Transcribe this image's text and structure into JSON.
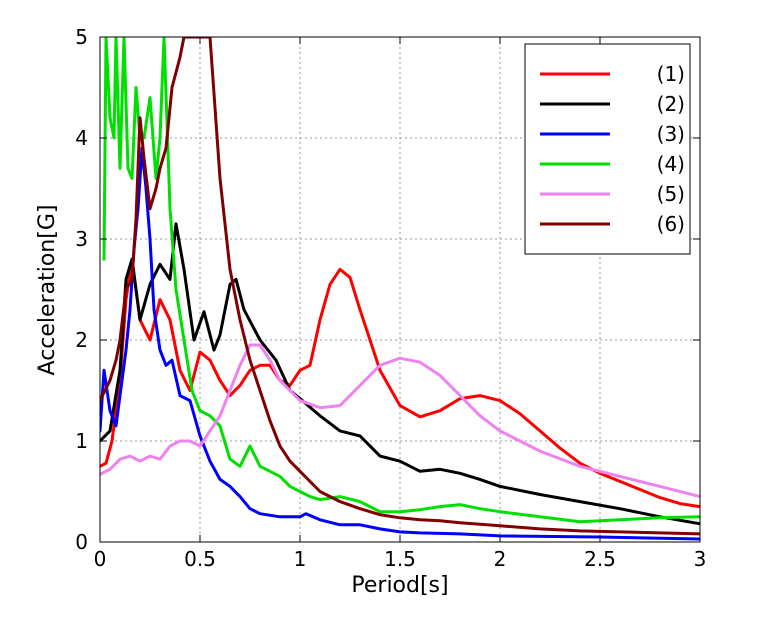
{
  "chart_data": {
    "type": "line",
    "title": "",
    "xlabel": "Period[s]",
    "ylabel": "Acceleration[G]",
    "xlim": [
      0,
      3
    ],
    "ylim": [
      0,
      5
    ],
    "xticks": [
      0,
      0.5,
      1,
      1.5,
      2,
      2.5,
      3
    ],
    "xtick_labels": [
      "0",
      "0.5",
      "1",
      "1.5",
      "2",
      "2.5",
      "3"
    ],
    "yticks": [
      0,
      1,
      2,
      3,
      4,
      5
    ],
    "ytick_labels": [
      "0",
      "1",
      "2",
      "3",
      "4",
      "5"
    ],
    "grid": true,
    "legend_position": "top-right",
    "series": [
      {
        "name": "(1)",
        "color": "#ff0000",
        "points": [
          [
            0,
            0.75
          ],
          [
            0.03,
            0.78
          ],
          [
            0.06,
            1.0
          ],
          [
            0.1,
            1.6
          ],
          [
            0.13,
            2.4
          ],
          [
            0.16,
            2.8
          ],
          [
            0.2,
            2.2
          ],
          [
            0.25,
            2.0
          ],
          [
            0.3,
            2.4
          ],
          [
            0.35,
            2.2
          ],
          [
            0.4,
            1.7
          ],
          [
            0.45,
            1.5
          ],
          [
            0.5,
            1.88
          ],
          [
            0.55,
            1.8
          ],
          [
            0.6,
            1.6
          ],
          [
            0.65,
            1.45
          ],
          [
            0.7,
            1.55
          ],
          [
            0.75,
            1.7
          ],
          [
            0.8,
            1.75
          ],
          [
            0.85,
            1.75
          ],
          [
            0.9,
            1.6
          ],
          [
            0.95,
            1.55
          ],
          [
            1.0,
            1.7
          ],
          [
            1.05,
            1.75
          ],
          [
            1.1,
            2.2
          ],
          [
            1.15,
            2.55
          ],
          [
            1.2,
            2.7
          ],
          [
            1.25,
            2.62
          ],
          [
            1.3,
            2.3
          ],
          [
            1.4,
            1.7
          ],
          [
            1.5,
            1.35
          ],
          [
            1.6,
            1.24
          ],
          [
            1.7,
            1.3
          ],
          [
            1.8,
            1.42
          ],
          [
            1.9,
            1.45
          ],
          [
            2.0,
            1.4
          ],
          [
            2.1,
            1.27
          ],
          [
            2.2,
            1.1
          ],
          [
            2.3,
            0.93
          ],
          [
            2.4,
            0.78
          ],
          [
            2.5,
            0.68
          ],
          [
            2.6,
            0.6
          ],
          [
            2.7,
            0.52
          ],
          [
            2.8,
            0.44
          ],
          [
            2.9,
            0.38
          ],
          [
            3.0,
            0.35
          ]
        ]
      },
      {
        "name": "(2)",
        "color": "#000000",
        "points": [
          [
            0,
            1.0
          ],
          [
            0.05,
            1.1
          ],
          [
            0.1,
            1.7
          ],
          [
            0.13,
            2.6
          ],
          [
            0.16,
            2.8
          ],
          [
            0.2,
            2.2
          ],
          [
            0.25,
            2.55
          ],
          [
            0.3,
            2.75
          ],
          [
            0.35,
            2.6
          ],
          [
            0.38,
            3.15
          ],
          [
            0.42,
            2.7
          ],
          [
            0.47,
            2.0
          ],
          [
            0.52,
            2.28
          ],
          [
            0.57,
            1.9
          ],
          [
            0.6,
            2.05
          ],
          [
            0.65,
            2.55
          ],
          [
            0.68,
            2.6
          ],
          [
            0.72,
            2.3
          ],
          [
            0.8,
            2.0
          ],
          [
            0.88,
            1.8
          ],
          [
            0.95,
            1.5
          ],
          [
            1.0,
            1.42
          ],
          [
            1.1,
            1.25
          ],
          [
            1.2,
            1.1
          ],
          [
            1.3,
            1.05
          ],
          [
            1.4,
            0.85
          ],
          [
            1.5,
            0.8
          ],
          [
            1.6,
            0.7
          ],
          [
            1.7,
            0.72
          ],
          [
            1.8,
            0.68
          ],
          [
            1.9,
            0.62
          ],
          [
            2.0,
            0.55
          ],
          [
            2.2,
            0.47
          ],
          [
            2.4,
            0.4
          ],
          [
            2.6,
            0.33
          ],
          [
            2.8,
            0.25
          ],
          [
            3.0,
            0.18
          ]
        ]
      },
      {
        "name": "(3)",
        "color": "#0000ff",
        "points": [
          [
            0,
            1.1
          ],
          [
            0.02,
            1.7
          ],
          [
            0.05,
            1.3
          ],
          [
            0.08,
            1.15
          ],
          [
            0.11,
            1.6
          ],
          [
            0.13,
            1.9
          ],
          [
            0.15,
            2.3
          ],
          [
            0.17,
            2.9
          ],
          [
            0.19,
            3.3
          ],
          [
            0.21,
            3.9
          ],
          [
            0.23,
            3.5
          ],
          [
            0.25,
            3.0
          ],
          [
            0.27,
            2.3
          ],
          [
            0.3,
            1.9
          ],
          [
            0.33,
            1.75
          ],
          [
            0.36,
            1.8
          ],
          [
            0.4,
            1.45
          ],
          [
            0.45,
            1.4
          ],
          [
            0.5,
            1.05
          ],
          [
            0.55,
            0.8
          ],
          [
            0.6,
            0.62
          ],
          [
            0.65,
            0.55
          ],
          [
            0.7,
            0.45
          ],
          [
            0.75,
            0.33
          ],
          [
            0.8,
            0.28
          ],
          [
            0.9,
            0.25
          ],
          [
            1.0,
            0.25
          ],
          [
            1.03,
            0.28
          ],
          [
            1.1,
            0.22
          ],
          [
            1.2,
            0.17
          ],
          [
            1.3,
            0.17
          ],
          [
            1.4,
            0.13
          ],
          [
            1.5,
            0.1
          ],
          [
            1.6,
            0.09
          ],
          [
            1.8,
            0.08
          ],
          [
            2.0,
            0.06
          ],
          [
            2.5,
            0.05
          ],
          [
            3.0,
            0.03
          ]
        ]
      },
      {
        "name": "(4)",
        "color": "#00e000",
        "points": [
          [
            0.02,
            2.8
          ],
          [
            0.03,
            5.0
          ],
          [
            0.05,
            4.2
          ],
          [
            0.07,
            4.0
          ],
          [
            0.08,
            5.0
          ],
          [
            0.1,
            3.7
          ],
          [
            0.12,
            5.0
          ],
          [
            0.14,
            3.7
          ],
          [
            0.16,
            3.6
          ],
          [
            0.18,
            4.5
          ],
          [
            0.2,
            4.0
          ],
          [
            0.22,
            4.0
          ],
          [
            0.25,
            4.4
          ],
          [
            0.28,
            3.6
          ],
          [
            0.3,
            4.0
          ],
          [
            0.32,
            5.0
          ],
          [
            0.35,
            3.3
          ],
          [
            0.38,
            2.5
          ],
          [
            0.42,
            2.0
          ],
          [
            0.46,
            1.5
          ],
          [
            0.5,
            1.3
          ],
          [
            0.55,
            1.25
          ],
          [
            0.6,
            1.15
          ],
          [
            0.65,
            0.82
          ],
          [
            0.7,
            0.75
          ],
          [
            0.75,
            0.95
          ],
          [
            0.8,
            0.75
          ],
          [
            0.85,
            0.7
          ],
          [
            0.9,
            0.65
          ],
          [
            0.95,
            0.55
          ],
          [
            1.0,
            0.5
          ],
          [
            1.05,
            0.45
          ],
          [
            1.1,
            0.42
          ],
          [
            1.2,
            0.45
          ],
          [
            1.3,
            0.4
          ],
          [
            1.4,
            0.3
          ],
          [
            1.5,
            0.3
          ],
          [
            1.6,
            0.32
          ],
          [
            1.7,
            0.35
          ],
          [
            1.8,
            0.37
          ],
          [
            1.9,
            0.33
          ],
          [
            2.0,
            0.3
          ],
          [
            2.2,
            0.25
          ],
          [
            2.4,
            0.2
          ],
          [
            2.6,
            0.22
          ],
          [
            2.8,
            0.24
          ],
          [
            3.0,
            0.25
          ]
        ]
      },
      {
        "name": "(5)",
        "color": "#ee82ee",
        "points": [
          [
            0,
            0.67
          ],
          [
            0.05,
            0.72
          ],
          [
            0.1,
            0.82
          ],
          [
            0.15,
            0.85
          ],
          [
            0.2,
            0.8
          ],
          [
            0.25,
            0.85
          ],
          [
            0.3,
            0.82
          ],
          [
            0.35,
            0.95
          ],
          [
            0.4,
            1.0
          ],
          [
            0.45,
            1.0
          ],
          [
            0.5,
            0.95
          ],
          [
            0.55,
            1.1
          ],
          [
            0.6,
            1.25
          ],
          [
            0.65,
            1.5
          ],
          [
            0.7,
            1.75
          ],
          [
            0.75,
            1.95
          ],
          [
            0.8,
            1.95
          ],
          [
            0.85,
            1.8
          ],
          [
            0.9,
            1.6
          ],
          [
            1.0,
            1.4
          ],
          [
            1.1,
            1.33
          ],
          [
            1.2,
            1.35
          ],
          [
            1.3,
            1.55
          ],
          [
            1.4,
            1.75
          ],
          [
            1.5,
            1.82
          ],
          [
            1.6,
            1.78
          ],
          [
            1.7,
            1.65
          ],
          [
            1.8,
            1.45
          ],
          [
            1.9,
            1.25
          ],
          [
            2.0,
            1.1
          ],
          [
            2.2,
            0.9
          ],
          [
            2.4,
            0.75
          ],
          [
            2.6,
            0.65
          ],
          [
            2.8,
            0.55
          ],
          [
            3.0,
            0.45
          ]
        ]
      },
      {
        "name": "(6)",
        "color": "#800000",
        "points": [
          [
            0,
            1.4
          ],
          [
            0.05,
            1.6
          ],
          [
            0.08,
            1.8
          ],
          [
            0.1,
            2.0
          ],
          [
            0.13,
            2.5
          ],
          [
            0.16,
            2.6
          ],
          [
            0.18,
            3.2
          ],
          [
            0.2,
            4.2
          ],
          [
            0.22,
            3.8
          ],
          [
            0.25,
            3.3
          ],
          [
            0.28,
            3.5
          ],
          [
            0.3,
            3.7
          ],
          [
            0.33,
            3.9
          ],
          [
            0.36,
            4.5
          ],
          [
            0.4,
            4.8
          ],
          [
            0.42,
            5.0
          ],
          [
            0.5,
            5.0
          ],
          [
            0.55,
            5.0
          ],
          [
            0.6,
            3.6
          ],
          [
            0.65,
            2.7
          ],
          [
            0.7,
            2.2
          ],
          [
            0.75,
            1.8
          ],
          [
            0.8,
            1.5
          ],
          [
            0.85,
            1.2
          ],
          [
            0.9,
            0.95
          ],
          [
            0.95,
            0.8
          ],
          [
            1.0,
            0.7
          ],
          [
            1.1,
            0.5
          ],
          [
            1.2,
            0.4
          ],
          [
            1.3,
            0.33
          ],
          [
            1.4,
            0.27
          ],
          [
            1.5,
            0.24
          ],
          [
            1.6,
            0.22
          ],
          [
            1.7,
            0.21
          ],
          [
            1.8,
            0.19
          ],
          [
            2.0,
            0.16
          ],
          [
            2.2,
            0.13
          ],
          [
            2.4,
            0.11
          ],
          [
            2.6,
            0.1
          ],
          [
            2.8,
            0.09
          ],
          [
            3.0,
            0.08
          ]
        ]
      }
    ]
  }
}
